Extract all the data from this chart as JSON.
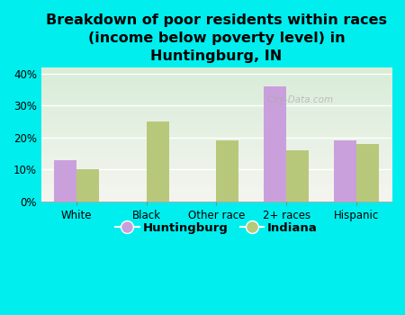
{
  "title": "Breakdown of poor residents within races\n(income below poverty level) in\nHuntingburg, IN",
  "categories": [
    "White",
    "Black",
    "Other race",
    "2+ races",
    "Hispanic"
  ],
  "huntingburg": [
    13,
    0,
    0,
    36,
    19
  ],
  "indiana": [
    10,
    25,
    19,
    16,
    18
  ],
  "huntingburg_color": "#c9a0dc",
  "indiana_color": "#b8c87a",
  "background_outer": "#00eeee",
  "background_plot_top": "#f5f5f0",
  "background_plot_bottom": "#d8edd8",
  "title_fontsize": 11.5,
  "tick_fontsize": 8.5,
  "legend_fontsize": 9.5,
  "ylim": [
    0,
    42
  ],
  "yticks": [
    0,
    10,
    20,
    30,
    40
  ],
  "ytick_labels": [
    "0%",
    "10%",
    "20%",
    "30%",
    "40%"
  ],
  "bar_width": 0.32,
  "legend_labels": [
    "Huntingburg",
    "Indiana"
  ]
}
